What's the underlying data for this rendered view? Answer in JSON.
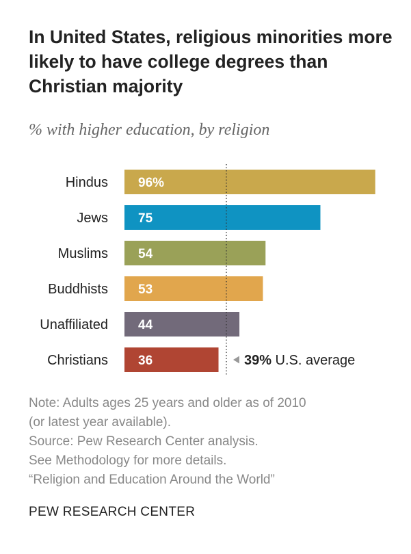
{
  "title": "In United States, religious minorities more likely to have college degrees than Christian majority",
  "subtitle": "% with higher education, by religion",
  "chart_data": {
    "type": "bar",
    "orientation": "horizontal",
    "categories": [
      "Hindus",
      "Jews",
      "Muslims",
      "Buddhists",
      "Unaffiliated",
      "Christians"
    ],
    "values": [
      96,
      75,
      54,
      53,
      44,
      36
    ],
    "value_labels": [
      "96%",
      "75",
      "54",
      "53",
      "44",
      "36"
    ],
    "colors": [
      "#c9a84c",
      "#0f93c2",
      "#9aa158",
      "#e1a64d",
      "#726a7a",
      "#b04533"
    ],
    "xlim": [
      0,
      100
    ],
    "reference_line": {
      "value": 39,
      "label_value": "39%",
      "label_text": " U.S. average",
      "style": "dotted"
    },
    "grid": false,
    "legend": "none"
  },
  "notes": [
    "Note: Adults ages 25 years and older as of 2010",
    "(or latest year available).",
    "Source: Pew Research Center analysis.",
    "See Methodology for more details.",
    "“Religion and Education Around the World”"
  ],
  "brand": "PEW RESEARCH CENTER"
}
